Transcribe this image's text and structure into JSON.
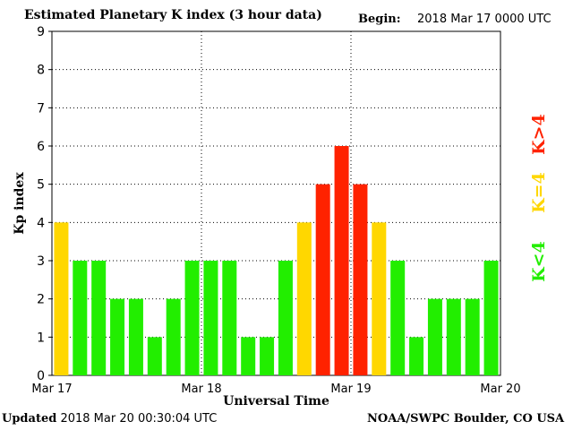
{
  "header": {
    "title": "Estimated Planetary K index (3 hour data)",
    "begin_label": "Begin:",
    "begin_value": "2018 Mar 17 0000 UTC"
  },
  "footer": {
    "updated_label": "Updated",
    "updated_value": "2018 Mar 20 00:30:04 UTC",
    "credit": "NOAA/SWPC Boulder, CO USA"
  },
  "chart_data": {
    "type": "bar",
    "title": "Estimated Planetary K index (3 hour data)",
    "xlabel": "Universal Time",
    "ylabel": "Kp index",
    "ylim": [
      0,
      9
    ],
    "yticks": [
      "0",
      "1",
      "2",
      "3",
      "4",
      "5",
      "6",
      "7",
      "8",
      "9"
    ],
    "xticks": [
      "Mar 17",
      "Mar 18",
      "Mar 19",
      "Mar 20"
    ],
    "grid": true,
    "values": [
      4,
      3,
      3,
      2,
      2,
      1,
      2,
      3,
      3,
      3,
      1,
      1,
      3,
      4,
      5,
      6,
      5,
      4,
      3,
      1,
      2,
      2,
      2,
      3
    ],
    "colors": {
      "below_4": "#22ee00",
      "equal_4": "#ffd700",
      "above_4": "#ff2200"
    },
    "legend": [
      {
        "label": "K<4",
        "color": "#22ee00"
      },
      {
        "label": "K=4",
        "color": "#ffd700"
      },
      {
        "label": "K>4",
        "color": "#ff2200"
      }
    ],
    "legend_position": "right"
  }
}
